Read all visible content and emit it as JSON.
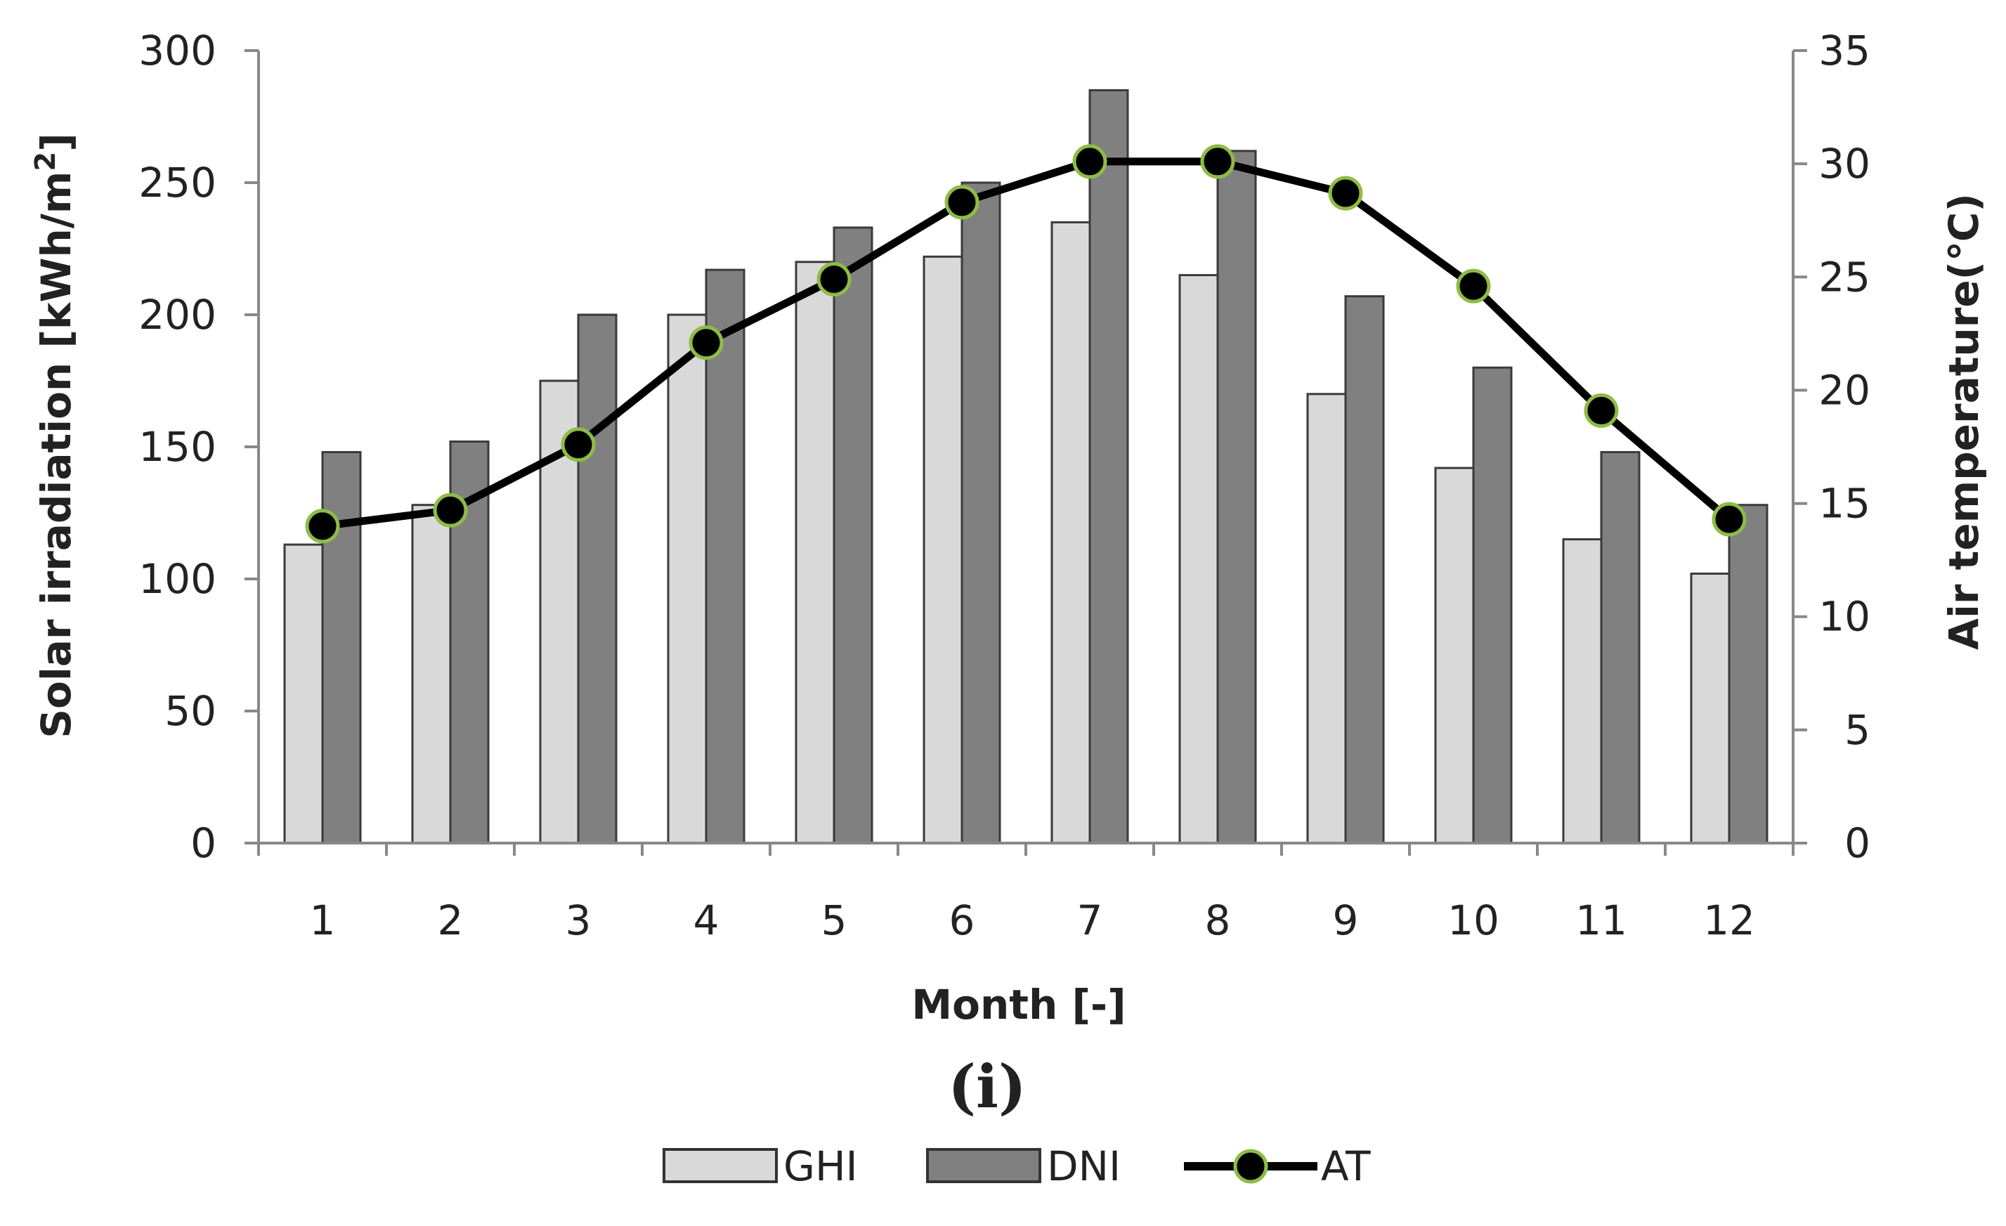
{
  "chart_data": {
    "type": "bar",
    "categories": [
      "1",
      "2",
      "3",
      "4",
      "5",
      "6",
      "7",
      "8",
      "9",
      "10",
      "11",
      "12"
    ],
    "series": [
      {
        "name": "GHI",
        "kind": "bar",
        "axis": "left",
        "color": "#d9d9d9",
        "values": [
          113,
          128,
          175,
          200,
          220,
          222,
          235,
          215,
          170,
          142,
          115,
          102
        ]
      },
      {
        "name": "DNI",
        "kind": "bar",
        "axis": "left",
        "color": "#808080",
        "values": [
          148,
          152,
          200,
          217,
          233,
          250,
          285,
          262,
          207,
          180,
          148,
          128
        ]
      },
      {
        "name": "AT",
        "kind": "line",
        "axis": "right",
        "color": "#000000",
        "marker_color": "#8fbc45",
        "values": [
          14.0,
          14.7,
          17.6,
          22.1,
          24.9,
          28.3,
          30.1,
          30.1,
          28.7,
          24.6,
          19.1,
          14.3
        ]
      }
    ],
    "xlabel": "Month [-]",
    "ylabel_prefix": "Solar irradiation  [kWh/m",
    "ylabel_sup": "2",
    "ylabel_suffix": "]",
    "y2label": "Air temperature(℃)",
    "ylim": [
      0,
      300
    ],
    "y_ticks": [
      "0",
      "50",
      "100",
      "150",
      "200",
      "250",
      "300"
    ],
    "y2lim": [
      0,
      35
    ],
    "y2_ticks": [
      "0",
      "5",
      "10",
      "15",
      "20",
      "25",
      "30",
      "35"
    ],
    "panel_label": "(i)",
    "legend": [
      "GHI",
      "DNI",
      "AT"
    ],
    "legend_position": "bottom-center",
    "grid": false
  }
}
